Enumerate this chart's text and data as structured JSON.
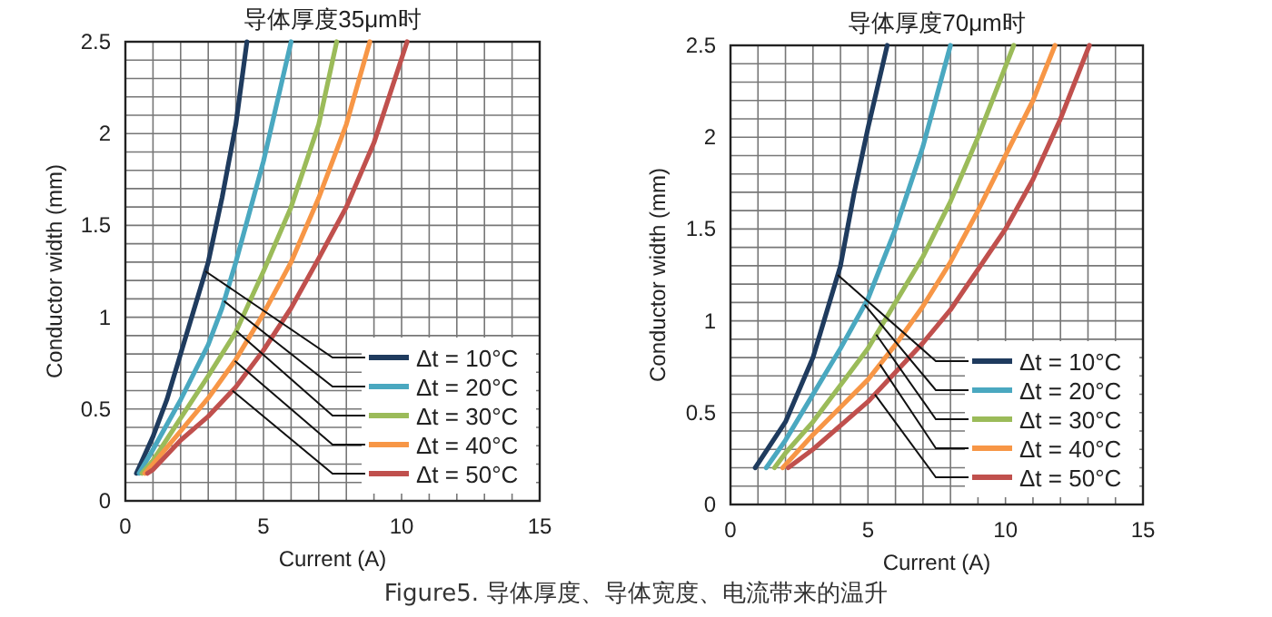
{
  "chart_data": [
    {
      "type": "line",
      "title": "导体厚度35μm时",
      "xlabel": "Current  (A)",
      "ylabel": "Conductor width (mm)",
      "xlim": [
        0,
        15
      ],
      "ylim": [
        0,
        2.5
      ],
      "xticks": [
        0,
        {
          "value": 1,
          "label": null
        },
        {
          "value": 2,
          "label": null
        },
        {
          "value": 3,
          "label": null
        },
        {
          "value": 4,
          "label": null
        },
        5,
        {
          "value": 6,
          "label": null
        },
        {
          "value": 7,
          "label": null
        },
        {
          "value": 8,
          "label": null
        },
        {
          "value": 9,
          "label": null
        },
        10,
        {
          "value": 11,
          "label": null
        },
        {
          "value": 12,
          "label": null
        },
        {
          "value": 13,
          "label": null
        },
        {
          "value": 14,
          "label": null
        },
        15
      ],
      "yticks": [
        0,
        {
          "value": 0.1,
          "label": null
        },
        {
          "value": 0.2,
          "label": null
        },
        {
          "value": 0.3,
          "label": null
        },
        {
          "value": 0.4,
          "label": null
        },
        0.5,
        {
          "value": 0.6,
          "label": null
        },
        {
          "value": 0.7,
          "label": null
        },
        {
          "value": 0.8,
          "label": null
        },
        {
          "value": 0.9,
          "label": null
        },
        1,
        {
          "value": 1.1,
          "label": null
        },
        {
          "value": 1.2,
          "label": null
        },
        {
          "value": 1.3,
          "label": null
        },
        {
          "value": 1.4,
          "label": null
        },
        1.5,
        {
          "value": 1.6,
          "label": null
        },
        {
          "value": 1.7,
          "label": null
        },
        {
          "value": 1.8,
          "label": null
        },
        {
          "value": 1.9,
          "label": null
        },
        2,
        {
          "value": 2.1,
          "label": null
        },
        {
          "value": 2.2,
          "label": null
        },
        {
          "value": 2.3,
          "label": null
        },
        {
          "value": 2.4,
          "label": null
        },
        2.5
      ],
      "grid": true,
      "legend": "bottom right",
      "marker": "none",
      "line_style": "solid",
      "series": [
        {
          "name": "Δt = 10°C",
          "color": "#1f3b5e",
          "x": [
            0.4,
            1,
            1.5,
            2,
            2.5,
            3,
            3.5,
            4,
            4.4
          ],
          "values": [
            0.15,
            0.35,
            0.55,
            0.8,
            1.05,
            1.3,
            1.65,
            2.05,
            2.5
          ]
        },
        {
          "name": "Δt = 20°C",
          "color": "#4aa8c0",
          "x": [
            0.5,
            1,
            2,
            3,
            3.5,
            4,
            5,
            6
          ],
          "values": [
            0.15,
            0.28,
            0.55,
            0.85,
            1.05,
            1.3,
            1.85,
            2.5
          ]
        },
        {
          "name": "Δt = 30°C",
          "color": "#9bbb59",
          "x": [
            0.6,
            1,
            2,
            3,
            4,
            5,
            6,
            7,
            7.65
          ],
          "values": [
            0.15,
            0.22,
            0.45,
            0.68,
            0.92,
            1.25,
            1.6,
            2.05,
            2.5
          ]
        },
        {
          "name": "Δt = 40°C",
          "color": "#f79646",
          "x": [
            0.7,
            1,
            2,
            3,
            4,
            5,
            6,
            7,
            8,
            8.85
          ],
          "values": [
            0.15,
            0.2,
            0.38,
            0.56,
            0.77,
            1.02,
            1.3,
            1.65,
            2.05,
            2.5
          ]
        },
        {
          "name": "Δt = 50°C",
          "color": "#c0504d",
          "x": [
            0.8,
            1,
            2,
            3,
            4,
            5,
            6,
            7,
            8,
            9,
            10.2
          ],
          "values": [
            0.15,
            0.17,
            0.33,
            0.46,
            0.62,
            0.82,
            1.05,
            1.32,
            1.6,
            1.95,
            2.5
          ]
        }
      ]
    },
    {
      "type": "line",
      "title": "导体厚度70μm时",
      "xlabel": "Current  (A)",
      "ylabel": "Conductor width (mm)",
      "xlim": [
        0,
        15
      ],
      "ylim": [
        0,
        2.5
      ],
      "xticks": [
        0,
        {
          "value": 1,
          "label": null
        },
        {
          "value": 2,
          "label": null
        },
        {
          "value": 3,
          "label": null
        },
        {
          "value": 4,
          "label": null
        },
        5,
        {
          "value": 6,
          "label": null
        },
        {
          "value": 7,
          "label": null
        },
        {
          "value": 8,
          "label": null
        },
        {
          "value": 9,
          "label": null
        },
        10,
        {
          "value": 11,
          "label": null
        },
        {
          "value": 12,
          "label": null
        },
        {
          "value": 13,
          "label": null
        },
        {
          "value": 14,
          "label": null
        },
        15
      ],
      "yticks": [
        0,
        {
          "value": 0.1,
          "label": null
        },
        {
          "value": 0.2,
          "label": null
        },
        {
          "value": 0.3,
          "label": null
        },
        {
          "value": 0.4,
          "label": null
        },
        0.5,
        {
          "value": 0.6,
          "label": null
        },
        {
          "value": 0.7,
          "label": null
        },
        {
          "value": 0.8,
          "label": null
        },
        {
          "value": 0.9,
          "label": null
        },
        1,
        {
          "value": 1.1,
          "label": null
        },
        {
          "value": 1.2,
          "label": null
        },
        {
          "value": 1.3,
          "label": null
        },
        {
          "value": 1.4,
          "label": null
        },
        1.5,
        {
          "value": 1.6,
          "label": null
        },
        {
          "value": 1.7,
          "label": null
        },
        {
          "value": 1.8,
          "label": null
        },
        {
          "value": 1.9,
          "label": null
        },
        2,
        {
          "value": 2.1,
          "label": null
        },
        {
          "value": 2.2,
          "label": null
        },
        {
          "value": 2.3,
          "label": null
        },
        {
          "value": 2.4,
          "label": null
        },
        2.5
      ],
      "grid": true,
      "legend": "bottom right",
      "marker": "none",
      "line_style": "solid",
      "annotations": [
        "Figure5. 导体厚度、导体宽度、电流带来的温升"
      ],
      "series": [
        {
          "name": "Δt = 10°C",
          "color": "#1f3b5e",
          "x": [
            0.9,
            2,
            3,
            4,
            4.5,
            5,
            5.7
          ],
          "values": [
            0.2,
            0.45,
            0.8,
            1.3,
            1.7,
            2.05,
            2.5
          ]
        },
        {
          "name": "Δt = 20°C",
          "color": "#4aa8c0",
          "x": [
            1.3,
            2,
            3,
            4,
            5,
            6,
            7,
            8
          ],
          "values": [
            0.2,
            0.35,
            0.6,
            0.85,
            1.12,
            1.5,
            1.95,
            2.5
          ]
        },
        {
          "name": "Δt = 30°C",
          "color": "#9bbb59",
          "x": [
            1.6,
            2,
            3,
            4,
            5,
            6,
            7,
            8,
            9,
            10.3
          ],
          "values": [
            0.2,
            0.28,
            0.45,
            0.65,
            0.85,
            1.1,
            1.35,
            1.65,
            2.0,
            2.5
          ]
        },
        {
          "name": "Δt = 40°C",
          "color": "#f79646",
          "x": [
            1.9,
            3,
            4,
            5,
            6,
            7,
            8,
            9,
            10,
            11,
            11.8
          ],
          "values": [
            0.2,
            0.38,
            0.53,
            0.68,
            0.87,
            1.08,
            1.32,
            1.6,
            1.9,
            2.2,
            2.5
          ]
        },
        {
          "name": "Δt = 50°C",
          "color": "#c0504d",
          "x": [
            2.1,
            3,
            4,
            5,
            6,
            7,
            8,
            9,
            10,
            11,
            12,
            13.05
          ],
          "values": [
            0.2,
            0.3,
            0.43,
            0.56,
            0.72,
            0.88,
            1.06,
            1.28,
            1.5,
            1.77,
            2.1,
            2.5
          ]
        }
      ]
    }
  ]
}
